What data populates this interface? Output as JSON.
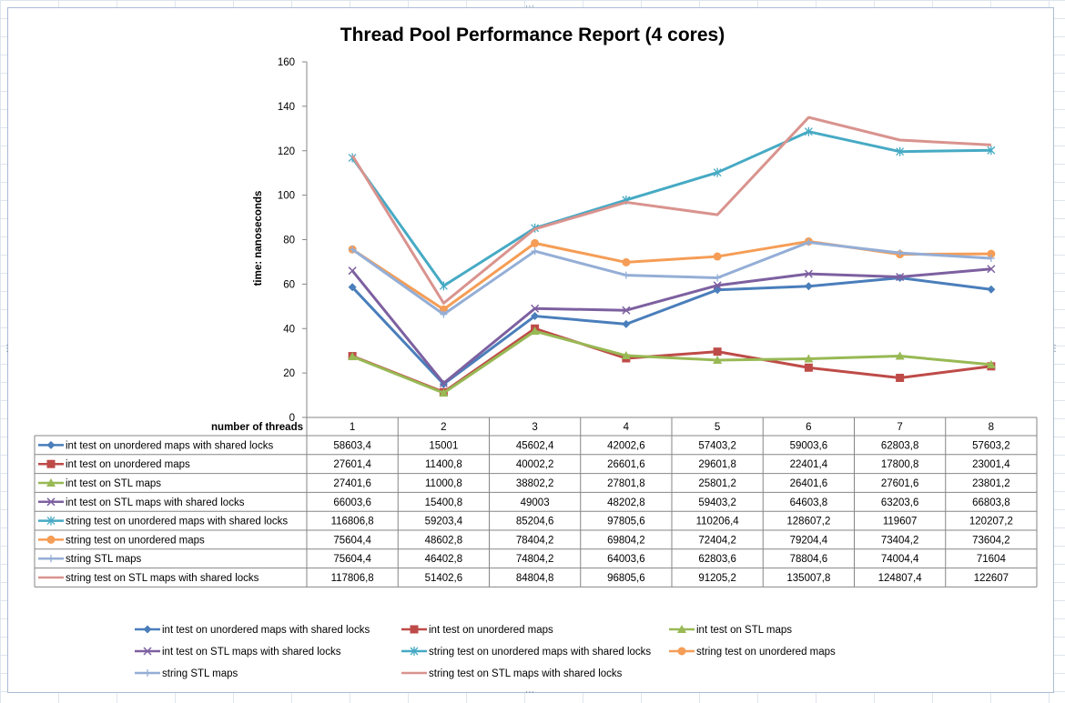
{
  "chart_data": {
    "type": "line",
    "title": "Thread Pool Performance Report (4 cores)",
    "ylabel": "time: nanoseconds",
    "xlabel": "number of threads",
    "ylim": [
      0,
      160
    ],
    "yticks": [
      0,
      20,
      40,
      60,
      80,
      100,
      120,
      140,
      160
    ],
    "categories": [
      "1",
      "2",
      "3",
      "4",
      "5",
      "6",
      "7",
      "8"
    ],
    "grid": false,
    "legend_position": "bottom",
    "series": [
      {
        "name": "int test on unordered maps with shared locks",
        "color": "#4a7ebb",
        "marker": "diamond",
        "labels": [
          "58603,4",
          "15001",
          "45602,4",
          "42002,6",
          "57403,2",
          "59003,6",
          "62803,8",
          "57603,2"
        ],
        "values": [
          58.6034,
          15.001,
          45.6024,
          42.0026,
          57.4032,
          59.0036,
          62.8038,
          57.6032
        ]
      },
      {
        "name": "int test on unordered maps",
        "color": "#be4b48",
        "marker": "square",
        "labels": [
          "27601,4",
          "11400,8",
          "40002,2",
          "26601,6",
          "29601,8",
          "22401,4",
          "17800,8",
          "23001,4"
        ],
        "values": [
          27.6014,
          11.4008,
          40.0022,
          26.6016,
          29.6018,
          22.4014,
          17.8008,
          23.0014
        ]
      },
      {
        "name": "int test on STL maps",
        "color": "#98b954",
        "marker": "triangle",
        "labels": [
          "27401,6",
          "11000,8",
          "38802,2",
          "27801,8",
          "25801,2",
          "26401,6",
          "27601,6",
          "23801,2"
        ],
        "values": [
          27.4016,
          11.0008,
          38.8022,
          27.8018,
          25.8012,
          26.4016,
          27.6016,
          23.8012
        ]
      },
      {
        "name": "int test on STL maps with shared locks",
        "color": "#7d60a0",
        "marker": "x",
        "labels": [
          "66003,6",
          "15400,8",
          "49003",
          "48202,8",
          "59403,2",
          "64603,8",
          "63203,6",
          "66803,8"
        ],
        "values": [
          66.0036,
          15.4008,
          49.003,
          48.2028,
          59.4032,
          64.6038,
          63.2036,
          66.8038
        ]
      },
      {
        "name": "string test on unordered maps with  shared locks",
        "color": "#46aac4",
        "marker": "star",
        "labels": [
          "116806,8",
          "59203,4",
          "85204,6",
          "97805,6",
          "110206,4",
          "128607,2",
          "119607",
          "120207,2"
        ],
        "values": [
          116.8068,
          59.2034,
          85.2046,
          97.8056,
          110.2064,
          128.6072,
          119.607,
          120.2072
        ]
      },
      {
        "name": "string test on unordered maps",
        "color": "#f59d56",
        "marker": "circle",
        "labels": [
          "75604,4",
          "48602,8",
          "78404,2",
          "69804,2",
          "72404,2",
          "79204,4",
          "73404,2",
          "73604,2"
        ],
        "values": [
          75.6044,
          48.6028,
          78.4042,
          69.8042,
          72.4042,
          79.2044,
          73.4042,
          73.6042
        ]
      },
      {
        "name": "string STL maps",
        "color": "#94aed6",
        "marker": "plus",
        "labels": [
          "75604,4",
          "46402,8",
          "74804,2",
          "64003,6",
          "62803,6",
          "78804,6",
          "74004,4",
          "71604"
        ],
        "values": [
          75.6044,
          46.4028,
          74.8042,
          64.0036,
          62.8036,
          78.8046,
          74.0044,
          71.604
        ]
      },
      {
        "name": "string test on STL maps with shared locks",
        "color": "#d9938e",
        "marker": "none",
        "labels": [
          "117806,8",
          "51402,6",
          "84804,8",
          "96805,6",
          "91205,2",
          "135007,8",
          "124807,4",
          "122607"
        ],
        "values": [
          117.8068,
          51.4026,
          84.8048,
          96.8056,
          91.2052,
          135.0078,
          124.8074,
          122.607
        ]
      }
    ]
  }
}
